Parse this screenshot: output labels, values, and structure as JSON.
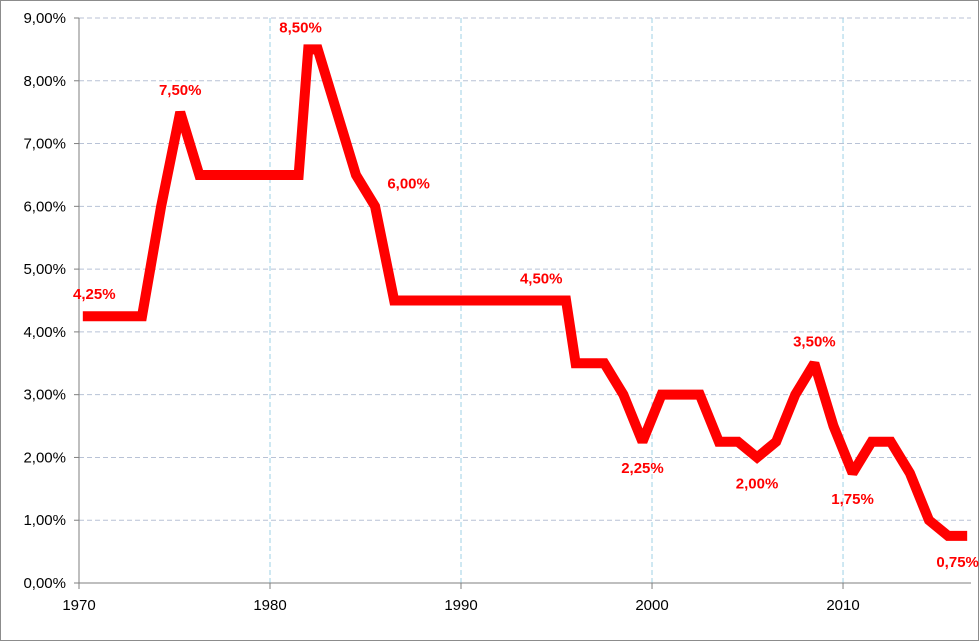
{
  "chart_data": {
    "type": "line",
    "title": "",
    "xlabel": "",
    "ylabel": "",
    "xlim": [
      1970,
      2016.7
    ],
    "ylim": [
      0,
      9
    ],
    "x_ticks": [
      1970,
      1980,
      1990,
      2000,
      2010
    ],
    "x_tick_labels": [
      "1970",
      "1980",
      "1990",
      "2000",
      "2010"
    ],
    "y_ticks": [
      0,
      1,
      2,
      3,
      4,
      5,
      6,
      7,
      8,
      9
    ],
    "y_tick_labels": [
      "0,00%",
      "1,00%",
      "2,00%",
      "3,00%",
      "4,00%",
      "5,00%",
      "6,00%",
      "7,00%",
      "8,00%",
      "9,00%"
    ],
    "grid": {
      "horizontal": "dashed",
      "vertical": "dashed at major x ticks"
    },
    "legend": "none",
    "colors": {
      "line": "#ff0000",
      "data_label": "#ff0000",
      "horizontal_grid": "#b8c2d6",
      "vertical_grid": "#9fd1e6",
      "axis": "#7f7f7f"
    },
    "series": [
      {
        "x": [
          1970.2,
          1973.3,
          1974.3,
          1975.3,
          1976.3,
          1977.5,
          1981.5,
          1982.0,
          1982.5,
          1984.5,
          1985.5,
          1986.5,
          1995.5,
          1996.0,
          1997.5,
          1998.5,
          1999.5,
          2000.5,
          2002.5,
          2003.5,
          2004.5,
          2005.5,
          2006.5,
          2007.5,
          2008.5,
          2009.5,
          2010.5,
          2011.5,
          2012.5,
          2013.5,
          2014.5,
          2015.5,
          2016.5
        ],
        "y": [
          4.25,
          4.25,
          6.0,
          7.5,
          6.5,
          6.5,
          6.5,
          8.5,
          8.5,
          6.5,
          6.0,
          4.5,
          4.5,
          3.5,
          3.5,
          3.0,
          2.25,
          3.0,
          3.0,
          2.25,
          2.25,
          2.0,
          2.25,
          3.0,
          3.5,
          2.5,
          1.75,
          2.25,
          2.25,
          1.75,
          1.0,
          0.75,
          0.75
        ]
      }
    ],
    "annotations": [
      {
        "text": "4,25%",
        "x": 1970.8,
        "y": 4.25,
        "anchor": "above"
      },
      {
        "text": "7,50%",
        "x": 1975.3,
        "y": 7.5,
        "anchor": "above"
      },
      {
        "text": "8,50%",
        "x": 1981.6,
        "y": 8.5,
        "anchor": "above"
      },
      {
        "text": "6,00%",
        "x": 1986.0,
        "y": 6.0,
        "anchor": "above-right"
      },
      {
        "text": "4,50%",
        "x": 1994.2,
        "y": 4.5,
        "anchor": "above"
      },
      {
        "text": "2,25%",
        "x": 1999.5,
        "y": 2.25,
        "anchor": "below"
      },
      {
        "text": "2,00%",
        "x": 2005.5,
        "y": 2.0,
        "anchor": "below"
      },
      {
        "text": "3,50%",
        "x": 2008.5,
        "y": 3.5,
        "anchor": "above"
      },
      {
        "text": "1,75%",
        "x": 2010.5,
        "y": 1.75,
        "anchor": "below"
      },
      {
        "text": "0,75%",
        "x": 2016.0,
        "y": 0.75,
        "anchor": "below"
      }
    ]
  }
}
